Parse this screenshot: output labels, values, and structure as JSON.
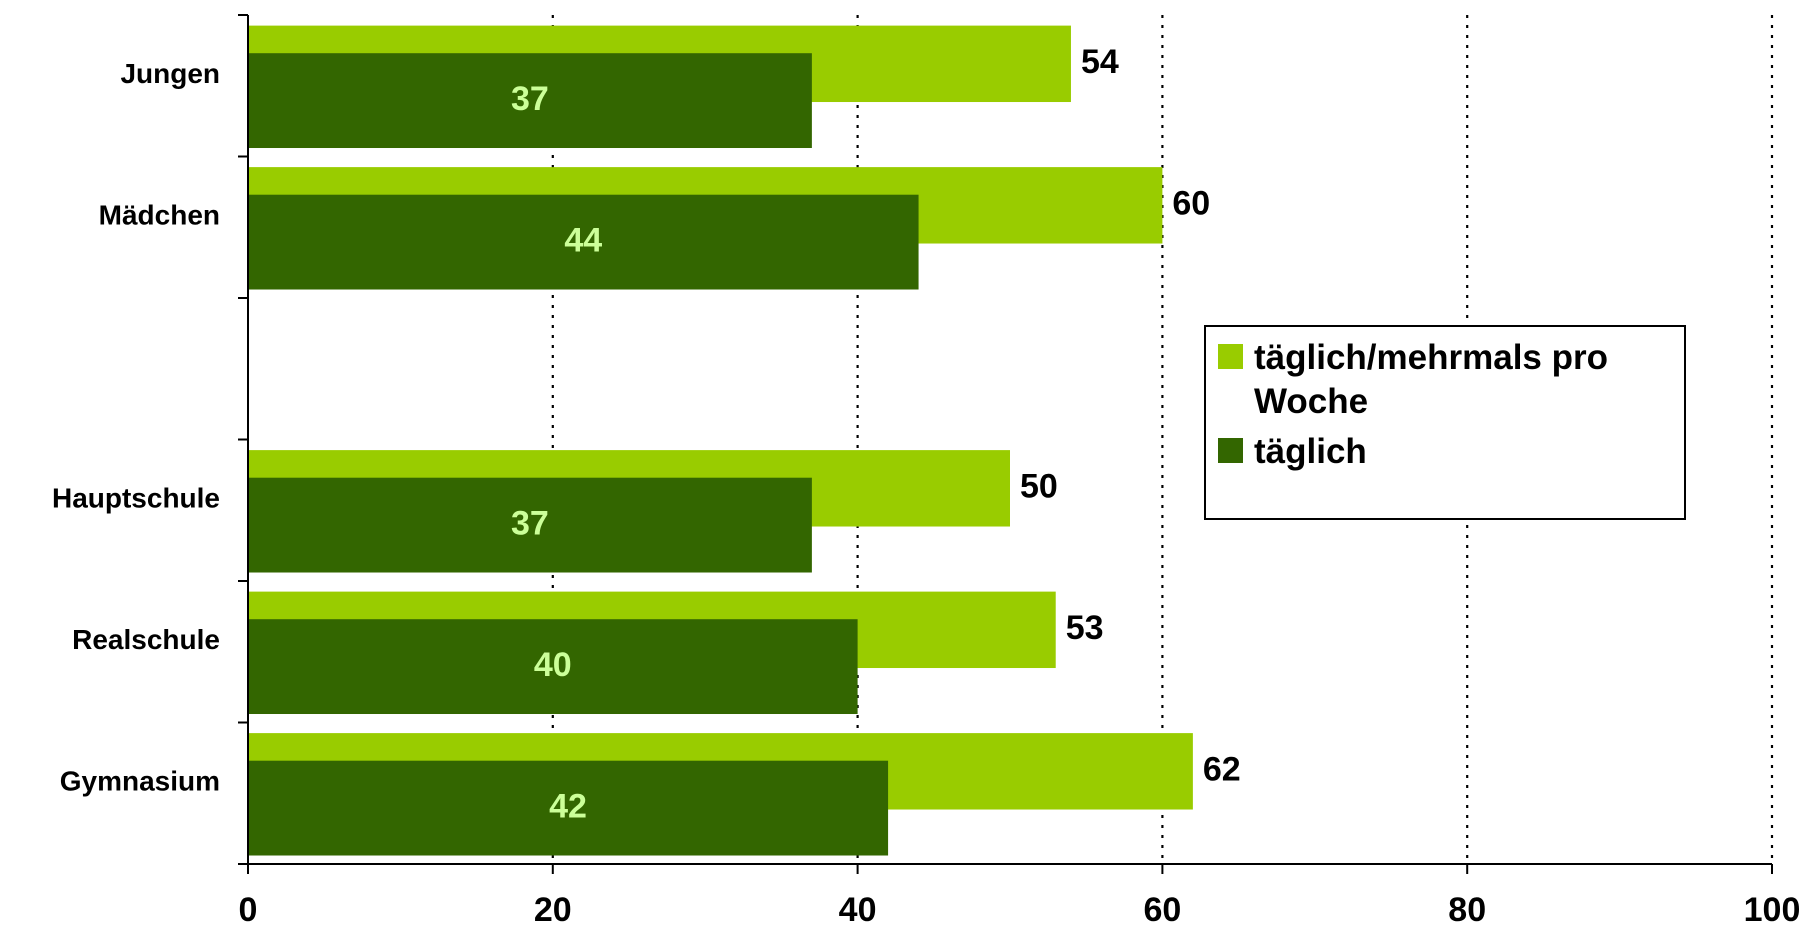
{
  "chart_data": {
    "type": "bar",
    "orientation": "horizontal",
    "categories": [
      "Jungen",
      "Mädchen",
      "",
      "Hauptschule",
      "Realschule",
      "Gymnasium"
    ],
    "series": [
      {
        "name": "täglich/mehrmals pro Woche",
        "color": "#99cc00",
        "values": [
          54,
          60,
          null,
          50,
          53,
          62
        ]
      },
      {
        "name": "täglich",
        "color": "#336600",
        "values": [
          37,
          44,
          null,
          37,
          40,
          42
        ]
      }
    ],
    "xlim": [
      0,
      100
    ],
    "xticks": [
      0,
      20,
      40,
      60,
      80,
      100
    ],
    "grid": "vertical dotted",
    "legend": {
      "position": "right",
      "lines": [
        [
          "täglich/mehrmals pro",
          "Woche"
        ],
        [
          "täglich"
        ]
      ]
    },
    "label_colors": {
      "outer": "#000000",
      "inner": "#ccff99"
    }
  }
}
